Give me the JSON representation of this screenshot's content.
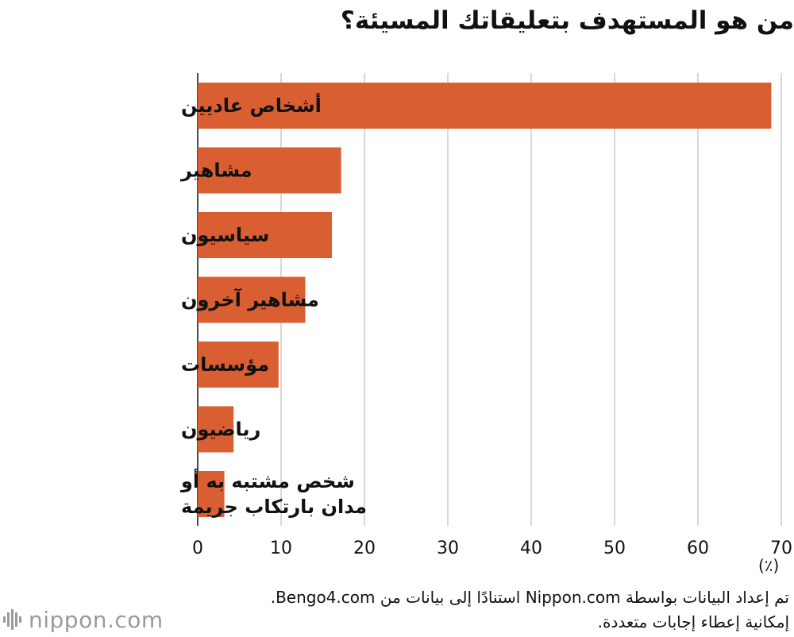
{
  "title": "من هو المستهدف بتعليقاتك المسيئة؟",
  "unit_label": "(٪)",
  "footer": {
    "line1": "تم إعداد البيانات بواسطة Nippon.com استنادًا إلى بيانات من Bengo4.com.",
    "line2": "إمكانية إعطاء إجابات متعددة."
  },
  "logo": {
    "text": "nippon.com",
    "icon": "nippon-signal-icon"
  },
  "colors": {
    "bar": "#d95f32",
    "grid": "#cccccc"
  },
  "chart_data": {
    "type": "bar",
    "orientation": "horizontal",
    "categories": [
      "أشخاص عاديين",
      "مشاهير",
      "سياسيون",
      "مشاهير آخرون",
      "مؤسسات",
      "رياضيون",
      "شخص مشتبه به أو مدان بارتكاب جريمة"
    ],
    "category_lines": [
      [
        "أشخاص عاديين"
      ],
      [
        "مشاهير"
      ],
      [
        "سياسيون"
      ],
      [
        "مشاهير آخرون"
      ],
      [
        "مؤسسات"
      ],
      [
        "رياضيون"
      ],
      [
        "شخص مشتبه به أو",
        "مدان بارتكاب جريمة"
      ]
    ],
    "values": [
      68.8,
      17.2,
      16.1,
      12.9,
      9.7,
      4.3,
      3.2
    ],
    "xlim": [
      0,
      70
    ],
    "xticks": [
      "0",
      "10",
      "20",
      "30",
      "40",
      "50",
      "60",
      "70"
    ],
    "grid": true
  }
}
